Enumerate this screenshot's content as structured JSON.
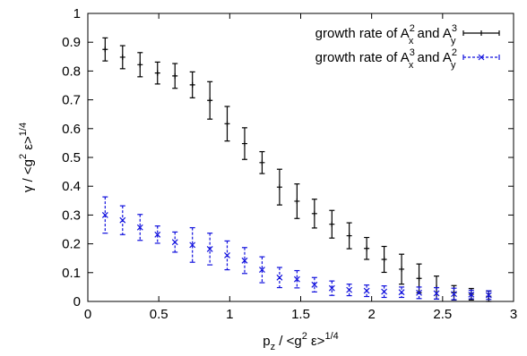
{
  "chart_data": {
    "type": "scatter",
    "xlabel": {
      "base": "p",
      "sub": "z",
      "rest": " / <g",
      "sup1": "2",
      "rest2": " ε>",
      "sup2": "1/4"
    },
    "ylabel": {
      "base": "γ / <g",
      "sup1": "2",
      "rest": " ε>",
      "sup2": "1/4"
    },
    "xlim": [
      0,
      3
    ],
    "ylim": [
      0,
      1
    ],
    "xticks": [
      "0",
      "0.5",
      "1",
      "1.5",
      "2",
      "2.5",
      "3"
    ],
    "yticks": [
      "0",
      "0.1",
      "0.2",
      "0.3",
      "0.4",
      "0.5",
      "0.6",
      "0.7",
      "0.8",
      "0.9",
      "1"
    ],
    "grid": false,
    "legend_position": "top-right",
    "series": [
      {
        "name": "growth rate of A_x^2 and A_y^3",
        "legend": {
          "pre": "growth rate of A",
          "sub1": "x",
          "sup1": "2",
          "mid": " and A",
          "sub2": "y",
          "sup2": "3"
        },
        "color": "#000000",
        "marker": "plus",
        "line": "solid",
        "x": [
          0.122,
          0.245,
          0.368,
          0.491,
          0.614,
          0.737,
          0.86,
          0.982,
          1.105,
          1.228,
          1.351,
          1.474,
          1.597,
          1.72,
          1.842,
          1.965,
          2.088,
          2.211,
          2.334,
          2.457,
          2.58,
          2.702,
          2.825
        ],
        "y": [
          0.875,
          0.848,
          0.822,
          0.793,
          0.783,
          0.752,
          0.698,
          0.617,
          0.548,
          0.482,
          0.397,
          0.348,
          0.305,
          0.268,
          0.228,
          0.184,
          0.146,
          0.112,
          0.08,
          0.048,
          0.03,
          0.025,
          0.018
        ],
        "err": [
          0.04,
          0.04,
          0.042,
          0.038,
          0.043,
          0.045,
          0.065,
          0.06,
          0.055,
          0.038,
          0.062,
          0.06,
          0.05,
          0.048,
          0.045,
          0.038,
          0.045,
          0.052,
          0.05,
          0.04,
          0.025,
          0.02,
          0.018
        ]
      },
      {
        "name": "growth rate of A_x^3 and A_y^2",
        "legend": {
          "pre": "growth rate of A",
          "sub1": "x",
          "sup1": "3",
          "mid": " and A",
          "sub2": "y",
          "sup2": "2"
        },
        "color": "#1010dd",
        "marker": "x",
        "line": "dashed",
        "x": [
          0.122,
          0.245,
          0.368,
          0.491,
          0.614,
          0.737,
          0.86,
          0.982,
          1.105,
          1.228,
          1.351,
          1.474,
          1.597,
          1.72,
          1.842,
          1.965,
          2.088,
          2.211,
          2.334,
          2.457,
          2.58,
          2.702,
          2.825
        ],
        "y": [
          0.3,
          0.282,
          0.257,
          0.232,
          0.206,
          0.196,
          0.182,
          0.16,
          0.142,
          0.11,
          0.083,
          0.077,
          0.058,
          0.046,
          0.04,
          0.037,
          0.034,
          0.032,
          0.03,
          0.028,
          0.026,
          0.024,
          0.022
        ],
        "err": [
          0.063,
          0.05,
          0.045,
          0.03,
          0.035,
          0.06,
          0.055,
          0.05,
          0.045,
          0.045,
          0.035,
          0.03,
          0.025,
          0.025,
          0.02,
          0.02,
          0.02,
          0.018,
          0.02,
          0.02,
          0.02,
          0.015,
          0.015
        ]
      }
    ]
  }
}
